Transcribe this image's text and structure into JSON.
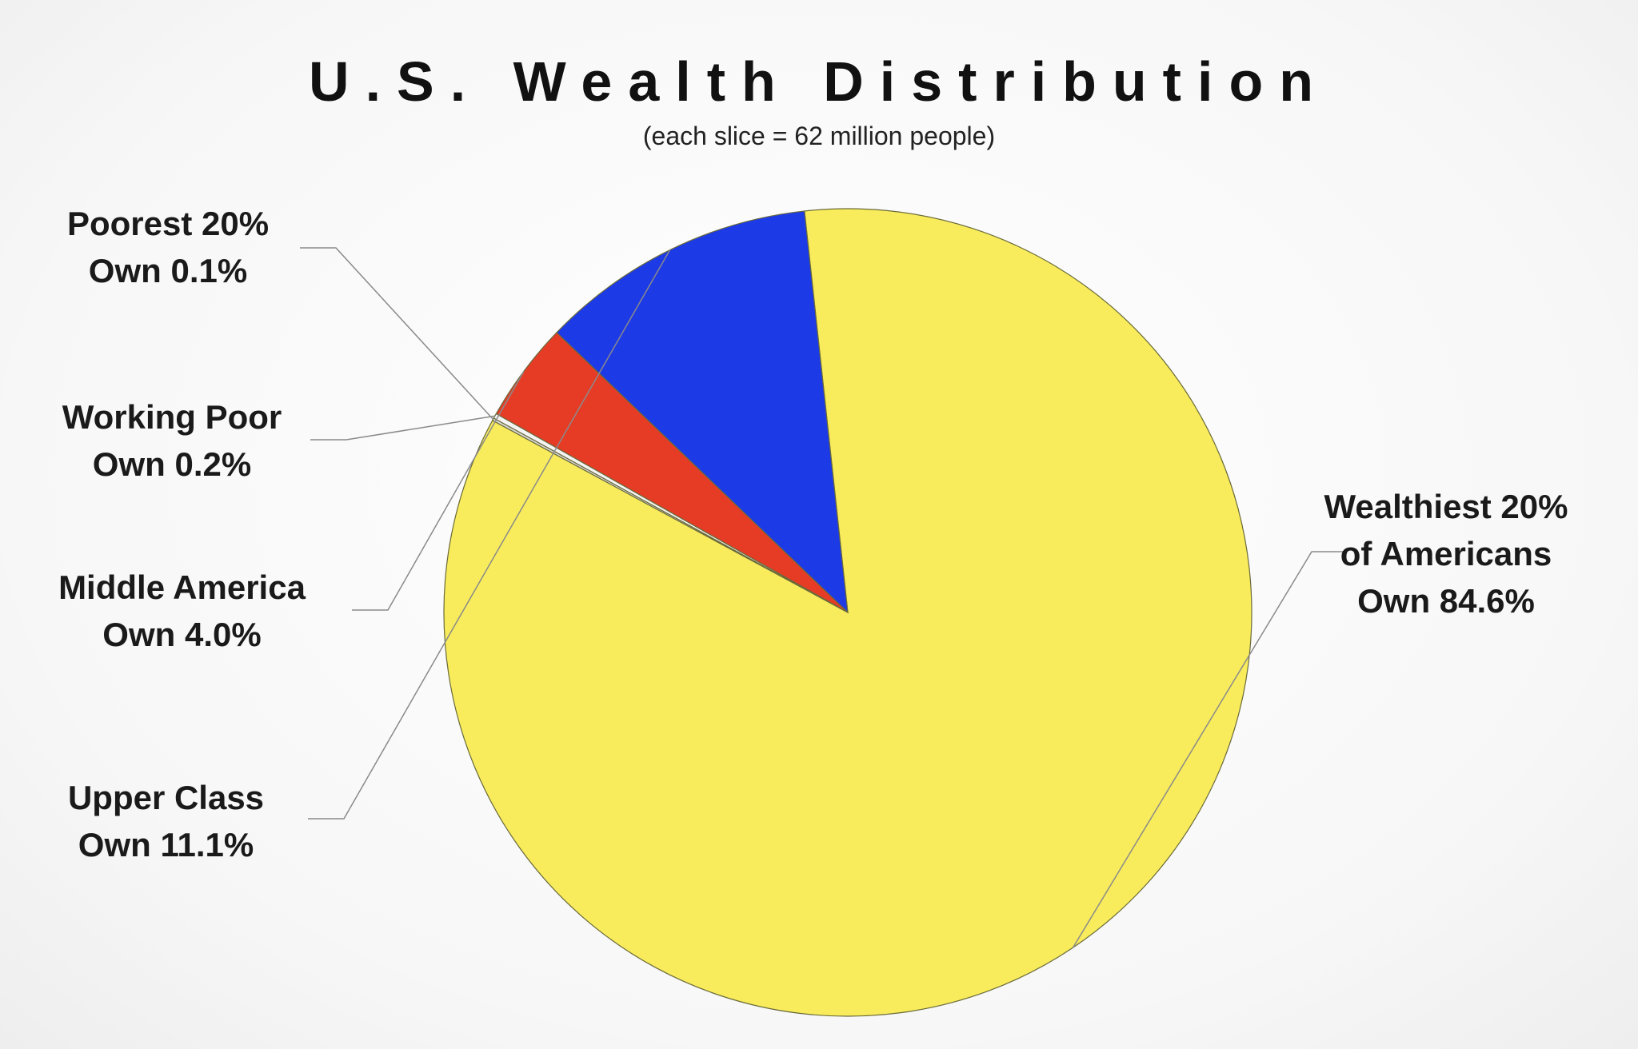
{
  "chart_data": {
    "type": "pie",
    "title": "U.S. Wealth Distribution",
    "subtitle": "(each slice = 62 million people)",
    "slices": [
      {
        "name": "Wealthiest 20%",
        "line1": "Wealthiest 20%",
        "line2": "of Americans",
        "line3": "Own 84.6%",
        "value": 84.6,
        "color": "#f8ec5c"
      },
      {
        "name": "Upper Class",
        "line1": "Upper Class",
        "line2": "Own 11.1%",
        "value": 11.1,
        "color": "#1c3ae6"
      },
      {
        "name": "Middle America",
        "line1": "Middle America",
        "line2": "Own 4.0%",
        "value": 4.0,
        "color": "#e63c26"
      },
      {
        "name": "Working Poor",
        "line1": "Working Poor",
        "line2": "Own 0.2%",
        "value": 0.2,
        "color": "#f4f4f4"
      },
      {
        "name": "Poorest 20%",
        "line1": "Poorest 20%",
        "line2": "Own 0.1%",
        "value": 0.1,
        "color": "#dcdcdc"
      }
    ]
  }
}
